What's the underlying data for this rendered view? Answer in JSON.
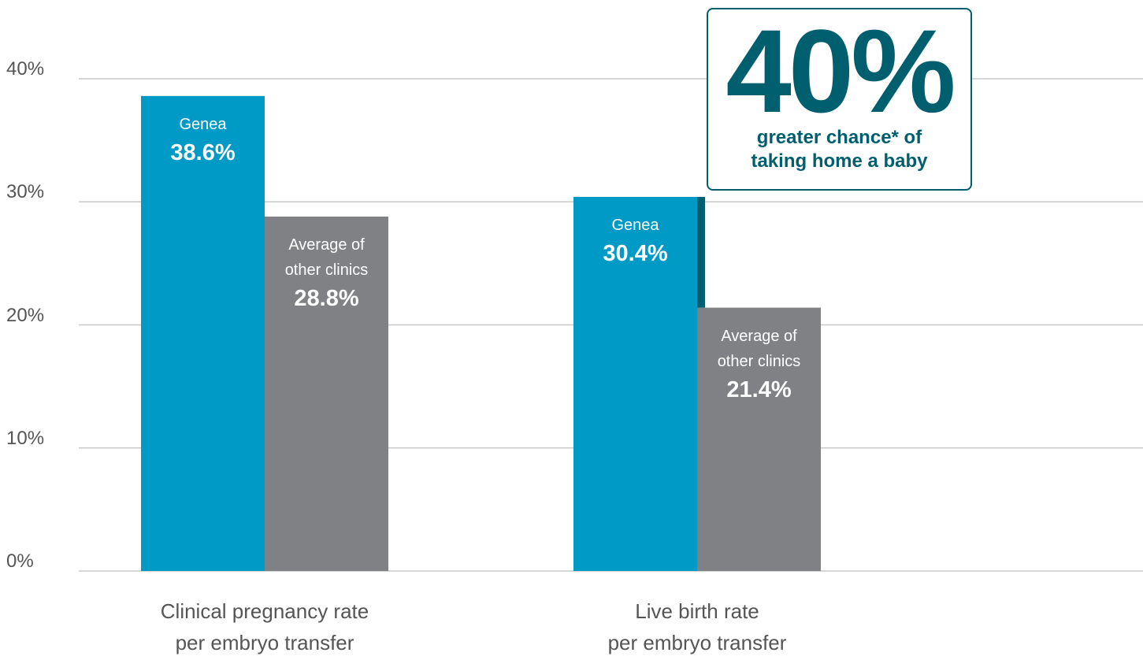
{
  "chart_data": {
    "type": "bar",
    "categories": [
      "Clinical pregnancy rate\nper embryo transfer",
      "Live birth rate\nper embryo transfer"
    ],
    "series": [
      {
        "name": "Genea",
        "color": "#009ac7",
        "values": [
          38.6,
          30.4
        ],
        "value_labels": [
          "38.6%",
          "30.4%"
        ]
      },
      {
        "name": "Average of\nother clinics",
        "color": "#808184",
        "values": [
          28.8,
          21.4
        ],
        "value_labels": [
          "28.8%",
          "21.4%"
        ]
      }
    ],
    "ylim": [
      0,
      40
    ],
    "yticks": [
      {
        "value": 0,
        "label": "0%"
      },
      {
        "value": 10,
        "label": "10%"
      },
      {
        "value": 20,
        "label": "20%"
      },
      {
        "value": 30,
        "label": "30%"
      },
      {
        "value": 40,
        "label": "40%"
      }
    ],
    "grid": true,
    "annotation": {
      "headline": "40%",
      "text": "greater chance* of\ntaking home a baby",
      "color": "#005f6e"
    }
  }
}
